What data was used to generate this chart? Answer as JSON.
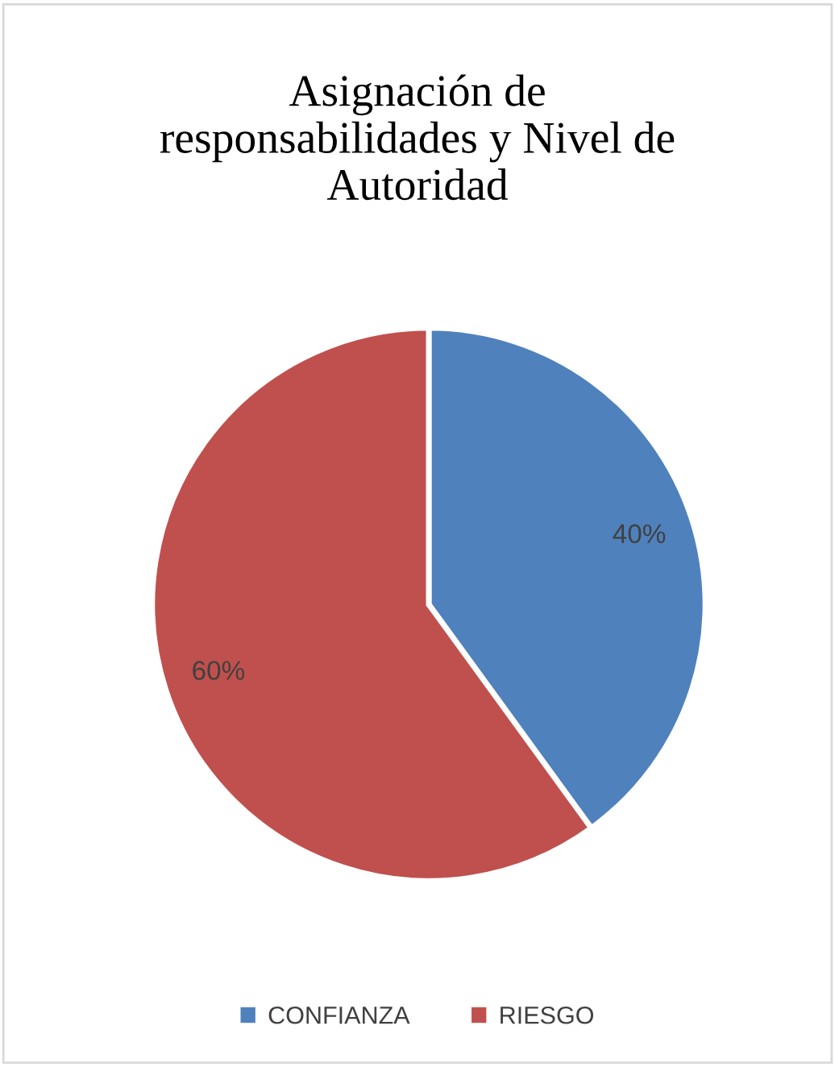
{
  "chart_data": {
    "type": "pie",
    "title": "Asignación de\nresponsabilidades y Nivel de\nAutoridad",
    "categories": [
      "CONFIANZA",
      "RIESGO"
    ],
    "values": [
      40,
      60
    ],
    "colors": [
      "#4f81bd",
      "#c0504d"
    ],
    "value_labels": [
      "40%",
      "60%"
    ],
    "legend": "bottom"
  }
}
